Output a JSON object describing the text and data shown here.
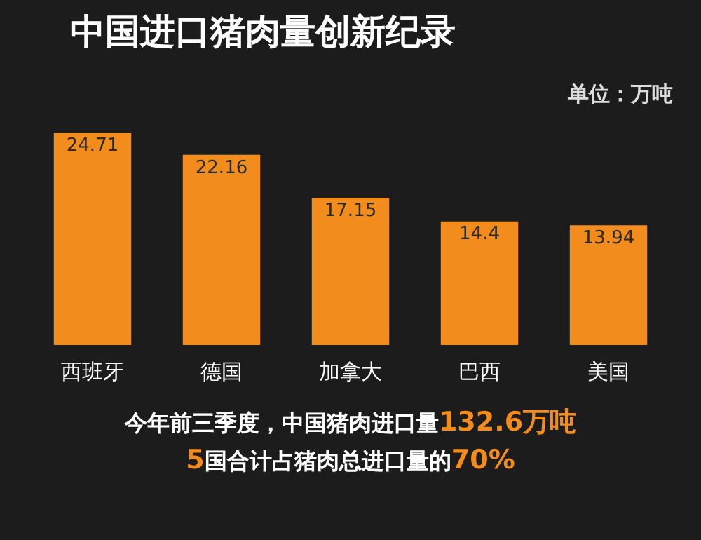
{
  "chart_data": {
    "type": "bar",
    "title": "中国进口猪肉量创新纪录",
    "subtitle": "单位：万吨",
    "categories": [
      "西班牙",
      "德国",
      "加拿大",
      "巴西",
      "美国"
    ],
    "values": [
      24.71,
      22.16,
      17.15,
      14.4,
      13.94
    ],
    "color": "#f28c1c",
    "data_labels": true,
    "annotations": [
      "今年前三季度，中国猪肉进口量132.6万吨",
      "5国合计占猪肉总进口量的70%"
    ]
  }
}
